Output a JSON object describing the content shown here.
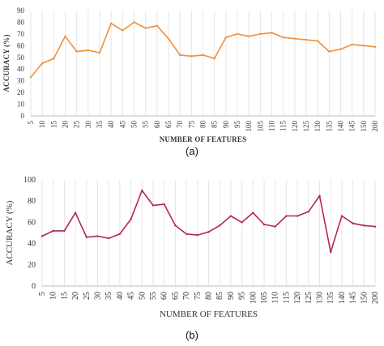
{
  "chart_data": [
    {
      "type": "line",
      "caption": "(a)",
      "xlabel": "NUMBER OF FEATURES",
      "ylabel": "ACCURACY (%)",
      "ylim": [
        0,
        90
      ],
      "yticks": [
        0,
        10,
        20,
        30,
        40,
        50,
        60,
        70,
        80,
        90
      ],
      "grid": "vertical",
      "color": "#F0903A",
      "categories": [
        "5",
        "10",
        "15",
        "20",
        "25",
        "30",
        "35",
        "40",
        "45",
        "50",
        "55",
        "60",
        "65",
        "70",
        "75",
        "80",
        "85",
        "90",
        "95",
        "100",
        "105",
        "110",
        "115",
        "120",
        "125",
        "130",
        "135",
        "140",
        "145",
        "150",
        "200"
      ],
      "values": [
        33,
        45,
        49,
        68,
        55,
        56,
        54,
        79,
        73,
        80,
        75,
        77,
        66,
        52,
        51,
        52,
        49,
        67,
        70,
        68,
        70,
        71,
        67,
        66,
        65,
        64,
        55,
        57,
        61,
        60,
        59
      ]
    },
    {
      "type": "line",
      "caption": "(b)",
      "xlabel": "NUMBER OF FEATURES",
      "ylabel": "ACCURACY (%)",
      "ylim": [
        0,
        100
      ],
      "yticks": [
        0,
        20,
        40,
        60,
        80,
        100
      ],
      "grid": "vertical",
      "color": "#B5284A",
      "categories": [
        "5",
        "10",
        "15",
        "20",
        "25",
        "30",
        "35",
        "40",
        "45",
        "50",
        "55",
        "60",
        "65",
        "70",
        "75",
        "80",
        "85",
        "90",
        "95",
        "100",
        "105",
        "110",
        "115",
        "120",
        "125",
        "130",
        "135",
        "140",
        "145",
        "150",
        "200"
      ],
      "values": [
        47,
        52,
        52,
        69,
        46,
        47,
        45,
        49,
        63,
        90,
        76,
        77,
        57,
        49,
        48,
        51,
        57,
        66,
        60,
        69,
        58,
        56,
        66,
        66,
        70,
        85,
        32,
        66,
        59,
        57,
        56
      ]
    }
  ]
}
